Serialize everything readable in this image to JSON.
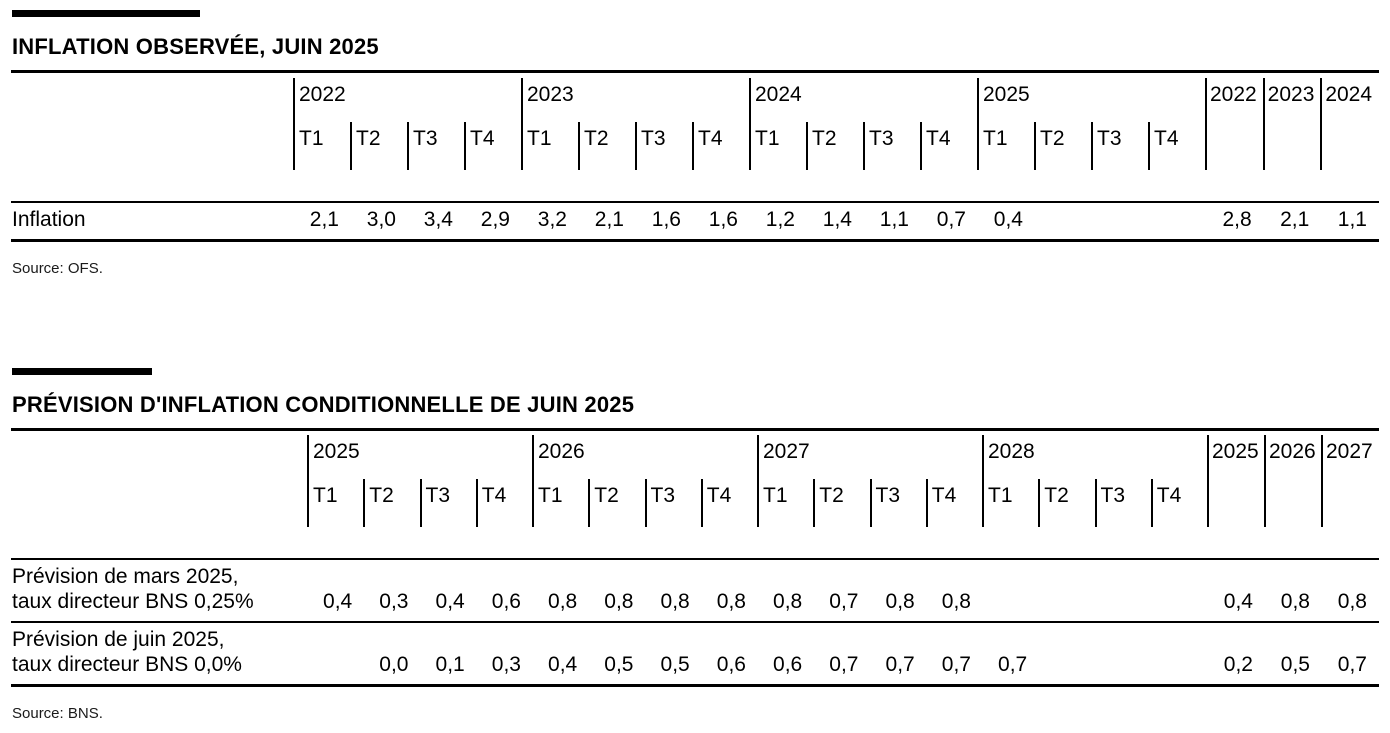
{
  "page": {
    "background_color": "#ffffff",
    "text_color": "#000000",
    "rule_color": "#000000"
  },
  "tables": [
    {
      "title": "INFLATION OBSERVÉE, JUIN 2025",
      "source": "Source: OFS.",
      "year_groups": [
        {
          "year": "2022",
          "quarters": [
            "T1",
            "T2",
            "T3",
            "T4"
          ]
        },
        {
          "year": "2023",
          "quarters": [
            "T1",
            "T2",
            "T3",
            "T4"
          ]
        },
        {
          "year": "2024",
          "quarters": [
            "T1",
            "T2",
            "T3",
            "T4"
          ]
        },
        {
          "year": "2025",
          "quarters": [
            "T1",
            "T2",
            "T3",
            "T4"
          ]
        }
      ],
      "annual_years": [
        "2022",
        "2023",
        "2024"
      ],
      "rows": [
        {
          "label_lines": [
            "Inflation"
          ],
          "quarterly": [
            "2,1",
            "3,0",
            "3,4",
            "2,9",
            "3,2",
            "2,1",
            "1,6",
            "1,6",
            "1,2",
            "1,4",
            "1,1",
            "0,7",
            "0,4",
            "",
            "",
            ""
          ],
          "annual": [
            "2,8",
            "2,1",
            "1,1"
          ]
        }
      ]
    },
    {
      "title": "PRÉVISION D'INFLATION CONDITIONNELLE DE JUIN 2025",
      "source": "Source: BNS.",
      "year_groups": [
        {
          "year": "2025",
          "quarters": [
            "T1",
            "T2",
            "T3",
            "T4"
          ]
        },
        {
          "year": "2026",
          "quarters": [
            "T1",
            "T2",
            "T3",
            "T4"
          ]
        },
        {
          "year": "2027",
          "quarters": [
            "T1",
            "T2",
            "T3",
            "T4"
          ]
        },
        {
          "year": "2028",
          "quarters": [
            "T1",
            "T2",
            "T3",
            "T4"
          ]
        }
      ],
      "annual_years": [
        "2025",
        "2026",
        "2027"
      ],
      "rows": [
        {
          "label_lines": [
            "Prévision de mars 2025,",
            "taux directeur BNS 0,25%"
          ],
          "quarterly": [
            "0,4",
            "0,3",
            "0,4",
            "0,6",
            "0,8",
            "0,8",
            "0,8",
            "0,8",
            "0,8",
            "0,7",
            "0,8",
            "0,8",
            "",
            "",
            "",
            ""
          ],
          "annual": [
            "0,4",
            "0,8",
            "0,8"
          ]
        },
        {
          "label_lines": [
            "Prévision de juin 2025,",
            "taux directeur BNS 0,0%"
          ],
          "quarterly": [
            "",
            "0,0",
            "0,1",
            "0,3",
            "0,4",
            "0,5",
            "0,5",
            "0,6",
            "0,6",
            "0,7",
            "0,7",
            "0,7",
            "0,7",
            "",
            "",
            ""
          ],
          "annual": [
            "0,2",
            "0,5",
            "0,7"
          ]
        }
      ]
    }
  ]
}
